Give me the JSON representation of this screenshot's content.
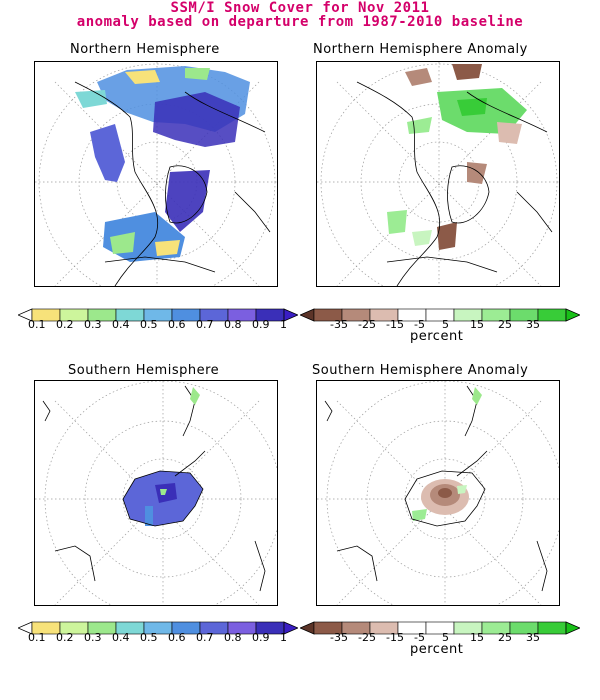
{
  "header": {
    "title_line1": "SSM/I Snow Cover for Nov 2011",
    "title_line2": "anomaly based on departure from 1987-2010 baseline"
  },
  "panels": {
    "nh": {
      "title": "Northern Hemisphere",
      "icon": "snow-cover-map"
    },
    "nh_anom": {
      "title": "Northern Hemisphere Anomaly",
      "icon": "anomaly-map"
    },
    "sh": {
      "title": "Southern Hemisphere",
      "icon": "snow-cover-map"
    },
    "sh_anom": {
      "title": "Southern Hemisphere Anomaly",
      "icon": "anomaly-map"
    }
  },
  "colorbars": {
    "cover": {
      "labels": [
        "0.1",
        "0.2",
        "0.3",
        "0.4",
        "0.5",
        "0.6",
        "0.7",
        "0.8",
        "0.9",
        "1"
      ],
      "colors": [
        "#ffffff",
        "#f7e27a",
        "#cdf59c",
        "#9ce88c",
        "#7ed8d6",
        "#6fb8e8",
        "#4f8fe0",
        "#5c66d8",
        "#7b5fe0",
        "#3a2fb8",
        "#3a1ec4"
      ]
    },
    "anomaly": {
      "labels": [
        "-35",
        "-25",
        "-15",
        "-5",
        "5",
        "15",
        "25",
        "35"
      ],
      "unit": "percent",
      "colors": [
        "#5c3428",
        "#8c5a48",
        "#b58a7a",
        "#dcbcb0",
        "#ffffff",
        "#ffffff",
        "#c8f5c0",
        "#9cec94",
        "#6cdc6c",
        "#38cc38",
        "#18c018"
      ]
    }
  },
  "colors": {
    "title": "#d4006a",
    "frame": "#000000",
    "grid": "#808080"
  }
}
